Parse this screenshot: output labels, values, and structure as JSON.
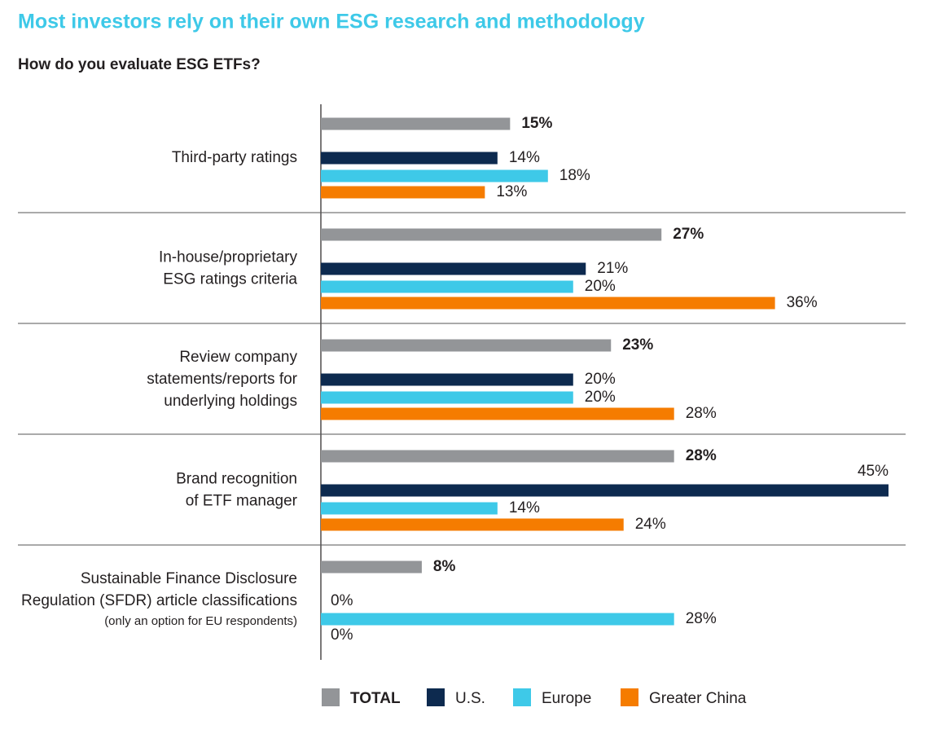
{
  "chart_data": {
    "type": "hbar",
    "title": "Most investors rely on their own ESG research and methodology",
    "subtitle": "How do you evaluate ESG ETFs?",
    "categories": [
      [
        "Third-party ratings"
      ],
      [
        "In-house/proprietary",
        "ESG ratings criteria"
      ],
      [
        "Review company",
        "statements/reports for",
        "underlying holdings"
      ],
      [
        "Brand recognition",
        "of ETF manager"
      ],
      [
        "Sustainable Finance Disclosure",
        "Regulation (SFDR) article classifications"
      ]
    ],
    "notes": [
      null,
      null,
      null,
      null,
      "(only an option for EU respondents)"
    ],
    "xlim": [
      0,
      45
    ],
    "series": [
      {
        "name": "TOTAL",
        "color": "#939598",
        "values": [
          15,
          27,
          23,
          28,
          8
        ],
        "value_labels": [
          "15%",
          "27%",
          "23%",
          "28%",
          "8%"
        ]
      },
      {
        "name": "U.S.",
        "color": "#0d2a4f",
        "values": [
          14,
          21,
          20,
          45,
          0
        ],
        "value_labels": [
          "14%",
          "21%",
          "20%",
          "45%",
          "0%"
        ]
      },
      {
        "name": "Europe",
        "color": "#3ec9e8",
        "values": [
          18,
          20,
          20,
          14,
          28
        ],
        "value_labels": [
          "18%",
          "20%",
          "20%",
          "14%",
          "28%"
        ]
      },
      {
        "name": "Greater China",
        "color": "#f57c00",
        "values": [
          13,
          36,
          28,
          24,
          0
        ],
        "value_labels": [
          "13%",
          "36%",
          "28%",
          "24%",
          "0%"
        ]
      }
    ]
  }
}
